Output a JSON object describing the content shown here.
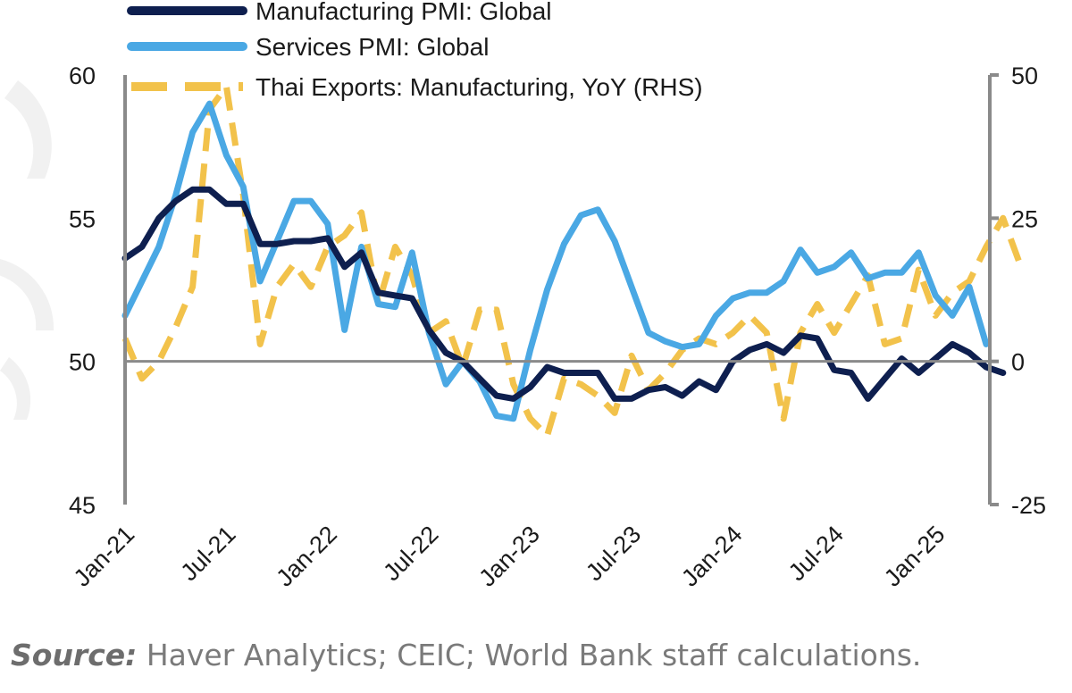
{
  "chart_data": {
    "type": "line",
    "title": "",
    "left_axis": {
      "ylim": [
        45,
        60
      ],
      "ticks": [
        "60",
        "55",
        "50",
        "45"
      ]
    },
    "right_axis": {
      "ylim": [
        -25,
        50
      ],
      "ticks": [
        "50",
        "25",
        "0",
        "-25"
      ]
    },
    "x_tick_labels": [
      "Jan-21",
      "Jul-21",
      "Jan-22",
      "Jul-22",
      "Jan-23",
      "Jul-23",
      "Jan-24",
      "Jul-24",
      "Jan-25"
    ],
    "start_month": "Jan-21",
    "series": [
      {
        "name": "Manufacturing PMI: Global",
        "axis": "left",
        "color": "#0e1f4f",
        "style": "solid",
        "values": [
          53.6,
          54.0,
          55.0,
          55.6,
          56.0,
          56.0,
          55.5,
          55.5,
          54.1,
          54.1,
          54.2,
          54.2,
          54.3,
          53.3,
          53.8,
          52.4,
          52.3,
          52.2,
          51.1,
          50.3,
          50.0,
          49.4,
          48.8,
          48.7,
          49.1,
          49.8,
          49.6,
          49.6,
          49.6,
          48.7,
          48.7,
          49.0,
          49.1,
          48.8,
          49.3,
          49.0,
          50.0,
          50.4,
          50.6,
          50.3,
          50.9,
          50.8,
          49.7,
          49.6,
          48.7,
          49.4,
          50.1,
          49.6,
          50.1,
          50.6,
          50.3,
          49.8,
          49.6
        ]
      },
      {
        "name": "Services PMI: Global",
        "axis": "left",
        "color": "#4aa8e4",
        "style": "solid",
        "values": [
          51.6,
          52.8,
          54.0,
          55.8,
          58.0,
          59.0,
          57.2,
          56.1,
          52.8,
          54.2,
          55.6,
          55.6,
          54.8,
          51.1,
          54.0,
          52.0,
          51.9,
          53.8,
          51.0,
          49.2,
          50.0,
          49.3,
          48.1,
          48.0,
          50.4,
          52.5,
          54.1,
          55.1,
          55.3,
          54.2,
          52.6,
          51.0,
          50.7,
          50.5,
          50.6,
          51.6,
          52.2,
          52.4,
          52.4,
          52.8,
          53.9,
          53.1,
          53.3,
          53.8,
          52.9,
          53.1,
          53.1,
          53.8,
          52.3,
          51.6,
          52.6,
          50.6
        ]
      },
      {
        "name": "Thai Exports: Manufacturing, YoY (RHS)",
        "axis": "right",
        "color": "#f2c24b",
        "style": "dashed",
        "values": [
          4,
          -3,
          0,
          6,
          13,
          44,
          48,
          29,
          3,
          13,
          17,
          13,
          20,
          22,
          26,
          10,
          20,
          15,
          5,
          7,
          -1,
          9,
          9,
          -4,
          -10,
          -13,
          -3,
          -4,
          -6,
          -9,
          1,
          -5,
          -2,
          2,
          4,
          3,
          5,
          8,
          5,
          -10,
          5,
          10,
          5,
          10,
          15,
          3,
          4,
          16,
          8,
          12,
          14,
          20,
          25,
          17
        ]
      }
    ]
  },
  "source": {
    "label": "Source:",
    "text": " Haver Analytics; CEIC; World Bank staff calculations."
  }
}
